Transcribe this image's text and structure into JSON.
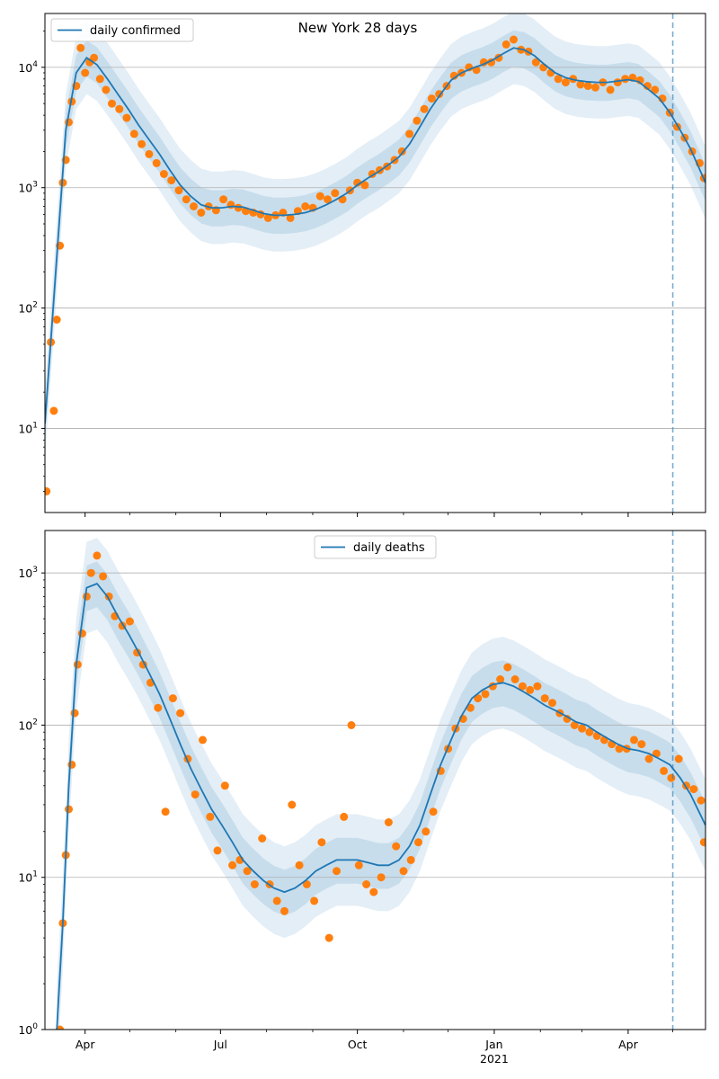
{
  "chart_data": [
    {
      "type": "line",
      "title": "New York 28 days",
      "yscale": "log",
      "ylim": [
        2.0,
        28000
      ],
      "xlim": [
        "2020-03-05",
        "2021-05-23"
      ],
      "grid": "y-major",
      "legend_placement": "upper-left",
      "x_ticks": [
        {
          "date": "2020-04-01",
          "label": "Apr"
        },
        {
          "date": "2020-07-01",
          "label": "Jul"
        },
        {
          "date": "2020-10-01",
          "label": "Oct"
        },
        {
          "date": "2021-01-01",
          "label": "Jan",
          "sublabel": ""
        },
        {
          "date": "2021-04-01",
          "label": "Apr"
        }
      ],
      "y_ticks": [
        {
          "value": 10,
          "base": "10",
          "exp": "1"
        },
        {
          "value": 100,
          "base": "10",
          "exp": "2"
        },
        {
          "value": 1000,
          "base": "10",
          "exp": "3"
        },
        {
          "value": 10000,
          "base": "10",
          "exp": "4"
        }
      ],
      "forecast_start": "2021-05-01",
      "series": [
        {
          "name": "daily confirmed",
          "role": "model-median",
          "color": "#1f77b4",
          "x": [
            "2020-03-05",
            "2020-03-12",
            "2020-03-19",
            "2020-03-26",
            "2020-04-02",
            "2020-04-09",
            "2020-04-16",
            "2020-04-23",
            "2020-04-30",
            "2020-05-07",
            "2020-05-14",
            "2020-05-21",
            "2020-05-28",
            "2020-06-04",
            "2020-06-11",
            "2020-06-18",
            "2020-06-25",
            "2020-07-02",
            "2020-07-09",
            "2020-07-16",
            "2020-07-23",
            "2020-07-30",
            "2020-08-06",
            "2020-08-13",
            "2020-08-20",
            "2020-08-27",
            "2020-09-03",
            "2020-09-10",
            "2020-09-17",
            "2020-09-24",
            "2020-10-01",
            "2020-10-08",
            "2020-10-15",
            "2020-10-22",
            "2020-10-29",
            "2020-11-05",
            "2020-11-12",
            "2020-11-19",
            "2020-11-26",
            "2020-12-03",
            "2020-12-10",
            "2020-12-17",
            "2020-12-24",
            "2020-12-31",
            "2021-01-07",
            "2021-01-14",
            "2021-01-21",
            "2021-01-28",
            "2021-02-04",
            "2021-02-11",
            "2021-02-18",
            "2021-02-25",
            "2021-03-04",
            "2021-03-11",
            "2021-03-18",
            "2021-03-25",
            "2021-04-01",
            "2021-04-08",
            "2021-04-15",
            "2021-04-22",
            "2021-04-29",
            "2021-05-06",
            "2021-05-13",
            "2021-05-23"
          ],
          "y": [
            11,
            180,
            3000,
            9000,
            12000,
            10500,
            8000,
            6000,
            4500,
            3300,
            2500,
            1900,
            1400,
            1050,
            850,
            720,
            680,
            680,
            700,
            690,
            650,
            610,
            590,
            590,
            600,
            620,
            660,
            720,
            800,
            900,
            1050,
            1200,
            1350,
            1550,
            1800,
            2300,
            3200,
            4500,
            6000,
            7800,
            9000,
            9800,
            10500,
            11500,
            13000,
            14500,
            14000,
            12500,
            10500,
            9000,
            8200,
            7800,
            7600,
            7500,
            7500,
            7700,
            7900,
            7600,
            6500,
            5500,
            4200,
            3000,
            2100,
            1100
          ]
        },
        {
          "name": "",
          "role": "observed",
          "color": "#ff7f0e",
          "x": [
            "2020-03-06",
            "2020-03-09",
            "2020-03-11",
            "2020-03-13",
            "2020-03-15",
            "2020-03-17",
            "2020-03-19",
            "2020-03-21",
            "2020-03-23",
            "2020-03-26",
            "2020-03-29",
            "2020-04-01",
            "2020-04-04",
            "2020-04-07",
            "2020-04-11",
            "2020-04-15",
            "2020-04-19",
            "2020-04-24",
            "2020-04-29",
            "2020-05-04",
            "2020-05-09",
            "2020-05-14",
            "2020-05-19",
            "2020-05-24",
            "2020-05-29",
            "2020-06-03",
            "2020-06-08",
            "2020-06-13",
            "2020-06-18",
            "2020-06-23",
            "2020-06-28",
            "2020-07-03",
            "2020-07-08",
            "2020-07-13",
            "2020-07-18",
            "2020-07-23",
            "2020-07-28",
            "2020-08-02",
            "2020-08-07",
            "2020-08-12",
            "2020-08-17",
            "2020-08-22",
            "2020-08-27",
            "2020-09-01",
            "2020-09-06",
            "2020-09-11",
            "2020-09-16",
            "2020-09-21",
            "2020-09-26",
            "2020-10-01",
            "2020-10-06",
            "2020-10-11",
            "2020-10-16",
            "2020-10-21",
            "2020-10-26",
            "2020-10-31",
            "2020-11-05",
            "2020-11-10",
            "2020-11-15",
            "2020-11-20",
            "2020-11-25",
            "2020-11-30",
            "2020-12-05",
            "2020-12-10",
            "2020-12-15",
            "2020-12-20",
            "2020-12-25",
            "2020-12-30",
            "2021-01-04",
            "2021-01-09",
            "2021-01-14",
            "2021-01-19",
            "2021-01-24",
            "2021-01-29",
            "2021-02-03",
            "2021-02-08",
            "2021-02-13",
            "2021-02-18",
            "2021-02-23",
            "2021-02-28",
            "2021-03-05",
            "2021-03-10",
            "2021-03-15",
            "2021-03-20",
            "2021-03-25",
            "2021-03-30",
            "2021-04-04",
            "2021-04-09",
            "2021-04-14",
            "2021-04-19",
            "2021-04-24",
            "2021-04-29",
            "2021-05-04",
            "2021-05-09",
            "2021-05-14",
            "2021-05-19",
            "2021-05-22"
          ],
          "y": [
            3,
            52,
            14,
            80,
            330,
            1100,
            1700,
            3500,
            5200,
            7000,
            14500,
            9000,
            11000,
            12000,
            8000,
            6500,
            5000,
            4500,
            3800,
            2800,
            2300,
            1900,
            1600,
            1300,
            1150,
            950,
            800,
            700,
            620,
            700,
            650,
            800,
            720,
            680,
            640,
            620,
            600,
            560,
            590,
            620,
            560,
            640,
            700,
            680,
            850,
            800,
            900,
            800,
            950,
            1100,
            1050,
            1300,
            1400,
            1500,
            1700,
            2000,
            2800,
            3600,
            4500,
            5500,
            6000,
            7000,
            8500,
            9000,
            10000,
            9500,
            11000,
            11000,
            12000,
            15500,
            17000,
            14000,
            13500,
            11000,
            10000,
            9000,
            8000,
            7500,
            8000,
            7200,
            7000,
            6800,
            7500,
            6500,
            7500,
            8000,
            8200,
            7800,
            7000,
            6500,
            5500,
            4200,
            3200,
            2600,
            2000,
            1600,
            1200
          ]
        }
      ]
    },
    {
      "type": "line",
      "title": "",
      "yscale": "log",
      "ylim": [
        1,
        1900
      ],
      "xlim": [
        "2020-03-05",
        "2021-05-23"
      ],
      "grid": "y-major",
      "legend_placement": "upper-center",
      "x_ticks": [
        {
          "date": "2020-04-01",
          "label": "Apr"
        },
        {
          "date": "2020-07-01",
          "label": "Jul"
        },
        {
          "date": "2020-10-01",
          "label": "Oct"
        },
        {
          "date": "2021-01-01",
          "label": "Jan",
          "sublabel": "2021"
        },
        {
          "date": "2021-04-01",
          "label": "Apr"
        }
      ],
      "y_ticks": [
        {
          "value": 1,
          "base": "10",
          "exp": "0"
        },
        {
          "value": 10,
          "base": "10",
          "exp": "1"
        },
        {
          "value": 100,
          "base": "10",
          "exp": "2"
        },
        {
          "value": 1000,
          "base": "10",
          "exp": "3"
        }
      ],
      "forecast_start": "2021-05-01",
      "series": [
        {
          "name": "daily deaths",
          "role": "model-median",
          "color": "#1f77b4",
          "x": [
            "2020-03-13",
            "2020-03-17",
            "2020-03-21",
            "2020-03-26",
            "2020-04-02",
            "2020-04-09",
            "2020-04-16",
            "2020-04-23",
            "2020-04-30",
            "2020-05-07",
            "2020-05-14",
            "2020-05-21",
            "2020-05-28",
            "2020-06-04",
            "2020-06-11",
            "2020-06-18",
            "2020-06-25",
            "2020-07-02",
            "2020-07-09",
            "2020-07-16",
            "2020-07-23",
            "2020-07-30",
            "2020-08-06",
            "2020-08-13",
            "2020-08-20",
            "2020-08-27",
            "2020-09-03",
            "2020-09-10",
            "2020-09-17",
            "2020-09-24",
            "2020-10-01",
            "2020-10-08",
            "2020-10-15",
            "2020-10-22",
            "2020-10-29",
            "2020-11-05",
            "2020-11-12",
            "2020-11-19",
            "2020-11-26",
            "2020-12-03",
            "2020-12-10",
            "2020-12-17",
            "2020-12-24",
            "2020-12-31",
            "2021-01-07",
            "2021-01-14",
            "2021-01-21",
            "2021-01-28",
            "2021-02-04",
            "2021-02-11",
            "2021-02-18",
            "2021-02-25",
            "2021-03-04",
            "2021-03-11",
            "2021-03-18",
            "2021-03-25",
            "2021-04-01",
            "2021-04-08",
            "2021-04-15",
            "2021-04-22",
            "2021-04-29",
            "2021-05-06",
            "2021-05-13",
            "2021-05-23"
          ],
          "y": [
            1,
            5,
            40,
            250,
            800,
            850,
            700,
            520,
            400,
            300,
            220,
            160,
            110,
            75,
            52,
            38,
            28,
            22,
            17,
            13,
            11,
            9.5,
            8.5,
            8,
            8.5,
            9.5,
            11,
            12,
            13,
            13,
            13,
            12.5,
            12,
            12,
            13,
            16,
            22,
            35,
            55,
            80,
            115,
            150,
            170,
            185,
            190,
            180,
            165,
            150,
            135,
            125,
            115,
            105,
            100,
            90,
            82,
            75,
            70,
            68,
            65,
            60,
            55,
            45,
            35,
            22
          ]
        },
        {
          "name": "",
          "role": "observed",
          "color": "#ff7f0e",
          "x": [
            "2020-03-15",
            "2020-03-17",
            "2020-03-19",
            "2020-03-21",
            "2020-03-23",
            "2020-03-25",
            "2020-03-27",
            "2020-03-30",
            "2020-04-02",
            "2020-04-05",
            "2020-04-09",
            "2020-04-13",
            "2020-04-17",
            "2020-04-21",
            "2020-04-26",
            "2020-05-01",
            "2020-05-06",
            "2020-05-10",
            "2020-05-15",
            "2020-05-20",
            "2020-05-25",
            "2020-05-30",
            "2020-06-04",
            "2020-06-09",
            "2020-06-14",
            "2020-06-19",
            "2020-06-24",
            "2020-06-29",
            "2020-07-04",
            "2020-07-09",
            "2020-07-14",
            "2020-07-19",
            "2020-07-24",
            "2020-07-29",
            "2020-08-03",
            "2020-08-08",
            "2020-08-13",
            "2020-08-18",
            "2020-08-23",
            "2020-08-28",
            "2020-09-02",
            "2020-09-07",
            "2020-09-12",
            "2020-09-17",
            "2020-09-22",
            "2020-09-27",
            "2020-10-02",
            "2020-10-07",
            "2020-10-12",
            "2020-10-17",
            "2020-10-22",
            "2020-10-27",
            "2020-11-01",
            "2020-11-06",
            "2020-11-11",
            "2020-11-16",
            "2020-11-21",
            "2020-11-26",
            "2020-12-01",
            "2020-12-06",
            "2020-12-11",
            "2020-12-16",
            "2020-12-21",
            "2020-12-26",
            "2020-12-31",
            "2021-01-05",
            "2021-01-10",
            "2021-01-15",
            "2021-01-20",
            "2021-01-25",
            "2021-01-30",
            "2021-02-04",
            "2021-02-09",
            "2021-02-14",
            "2021-02-19",
            "2021-02-24",
            "2021-03-01",
            "2021-03-06",
            "2021-03-11",
            "2021-03-16",
            "2021-03-21",
            "2021-03-26",
            "2021-03-31",
            "2021-04-05",
            "2021-04-10",
            "2021-04-15",
            "2021-04-20",
            "2021-04-25",
            "2021-04-30",
            "2021-05-05",
            "2021-05-10",
            "2021-05-15",
            "2021-05-20",
            "2021-05-22"
          ],
          "y": [
            1,
            5,
            14,
            28,
            55,
            120,
            250,
            400,
            700,
            1000,
            1300,
            950,
            700,
            520,
            450,
            480,
            300,
            250,
            190,
            130,
            27,
            150,
            120,
            60,
            35,
            80,
            25,
            15,
            40,
            12,
            13,
            11,
            9,
            18,
            9,
            7,
            6,
            30,
            12,
            9,
            7,
            17,
            4,
            11,
            25,
            100,
            12,
            9,
            8,
            10,
            23,
            16,
            11,
            13,
            17,
            20,
            27,
            50,
            70,
            95,
            110,
            130,
            150,
            160,
            180,
            200,
            240,
            200,
            180,
            170,
            180,
            150,
            140,
            120,
            110,
            100,
            95,
            90,
            85,
            80,
            75,
            70,
            70,
            80,
            75,
            60,
            65,
            50,
            45,
            60,
            40,
            38,
            32,
            17
          ]
        }
      ]
    }
  ]
}
